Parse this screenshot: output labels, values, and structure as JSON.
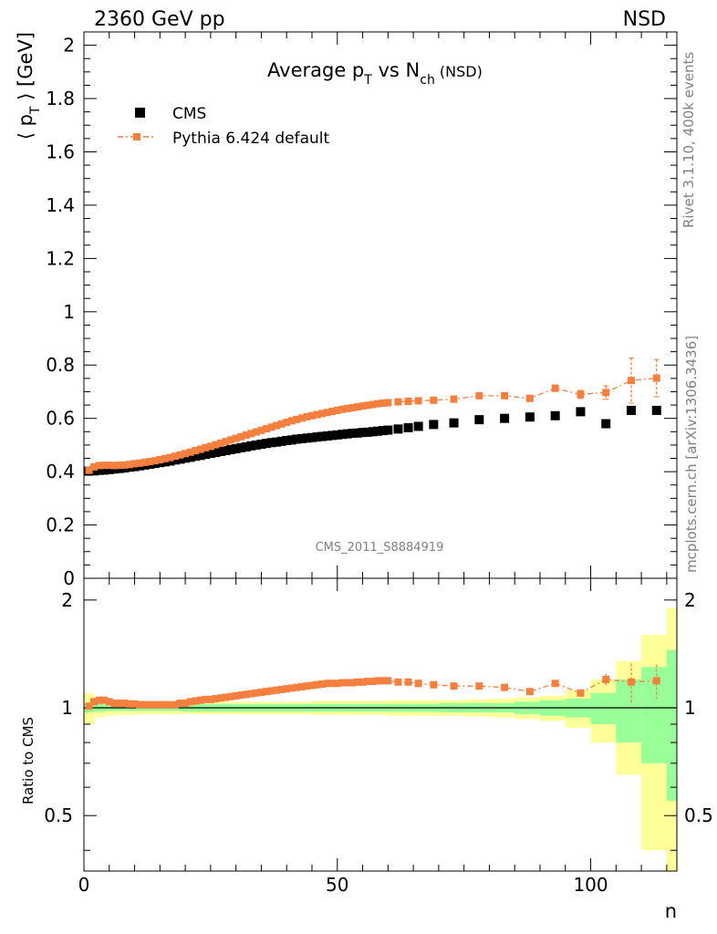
{
  "header": {
    "left": "2360 GeV pp",
    "right": "NSD"
  },
  "side": {
    "rivet": "Rivet 3.1.10,  400k events",
    "mcplots": "mcplots.cern.ch [arXiv:1306.3436]"
  },
  "watermark": "CMS_2011_S8884919",
  "title": {
    "main": "Average p",
    "sub1": "T",
    "mid": " vs N",
    "sub2": "ch",
    "tail": " (NSD)"
  },
  "ylabel": {
    "left": "⟨ p",
    "sub": "T",
    "right": " ⟩ [GeV]"
  },
  "ratio_label": "Ratio to CMS",
  "xlabel": "n",
  "legend": {
    "cms": "CMS",
    "pythia": "Pythia 6.424 default"
  },
  "colors": {
    "cms": "#000000",
    "pythia": "#f47f3f",
    "band_inner": "#99ff99",
    "band_outer": "#ffff99"
  },
  "chart_data": [
    {
      "type": "scatter",
      "title": "Average pT vs Nch (NSD)",
      "xlabel": "n",
      "ylabel": "⟨ pT ⟩ [GeV]",
      "xlim": [
        0,
        117
      ],
      "ylim": [
        0,
        2.05
      ],
      "xticks": [
        0,
        50,
        100
      ],
      "yticks": [
        0,
        0.2,
        0.4,
        0.6,
        0.8,
        1,
        1.2,
        1.4,
        1.6,
        1.8,
        2
      ],
      "series": [
        {
          "name": "CMS",
          "x": [
            1,
            2,
            3,
            4,
            5,
            6,
            7,
            8,
            9,
            10,
            11,
            12,
            13,
            14,
            15,
            16,
            17,
            18,
            19,
            20,
            21,
            22,
            23,
            24,
            25,
            26,
            27,
            28,
            29,
            30,
            31,
            32,
            33,
            34,
            35,
            36,
            37,
            38,
            39,
            40,
            41,
            42,
            43,
            44,
            45,
            46,
            47,
            48,
            49,
            50,
            51,
            52,
            53,
            54,
            55,
            56,
            57,
            58,
            59,
            60,
            62,
            64,
            66,
            69,
            73,
            78,
            83,
            88,
            93,
            98,
            103,
            108,
            113
          ],
          "y": [
            0.402,
            0.403,
            0.405,
            0.406,
            0.408,
            0.41,
            0.412,
            0.414,
            0.417,
            0.419,
            0.422,
            0.425,
            0.428,
            0.431,
            0.434,
            0.437,
            0.44,
            0.444,
            0.447,
            0.451,
            0.454,
            0.458,
            0.461,
            0.465,
            0.469,
            0.472,
            0.476,
            0.479,
            0.483,
            0.486,
            0.49,
            0.493,
            0.497,
            0.5,
            0.503,
            0.506,
            0.509,
            0.511,
            0.514,
            0.517,
            0.519,
            0.522,
            0.524,
            0.526,
            0.528,
            0.53,
            0.532,
            0.534,
            0.536,
            0.538,
            0.54,
            0.542,
            0.544,
            0.545,
            0.547,
            0.548,
            0.55,
            0.552,
            0.554,
            0.556,
            0.56,
            0.565,
            0.57,
            0.577,
            0.583,
            0.595,
            0.6,
            0.605,
            0.61,
            0.625,
            0.58,
            0.63,
            0.63
          ]
        },
        {
          "name": "Pythia 6.424 default",
          "x": [
            1,
            2,
            3,
            4,
            5,
            6,
            7,
            8,
            9,
            10,
            11,
            12,
            13,
            14,
            15,
            16,
            17,
            18,
            19,
            20,
            21,
            22,
            23,
            24,
            25,
            26,
            27,
            28,
            29,
            30,
            31,
            32,
            33,
            34,
            35,
            36,
            37,
            38,
            39,
            40,
            41,
            42,
            43,
            44,
            45,
            46,
            47,
            48,
            49,
            50,
            51,
            52,
            53,
            54,
            55,
            56,
            57,
            58,
            59,
            60,
            62,
            64,
            66,
            69,
            73,
            78,
            83,
            88,
            93,
            98,
            103,
            108,
            113
          ],
          "y": [
            0.405,
            0.418,
            0.423,
            0.424,
            0.424,
            0.423,
            0.424,
            0.425,
            0.427,
            0.43,
            0.432,
            0.435,
            0.438,
            0.441,
            0.445,
            0.449,
            0.453,
            0.458,
            0.463,
            0.468,
            0.473,
            0.479,
            0.484,
            0.49,
            0.495,
            0.501,
            0.507,
            0.513,
            0.519,
            0.525,
            0.531,
            0.537,
            0.543,
            0.549,
            0.555,
            0.561,
            0.567,
            0.573,
            0.579,
            0.585,
            0.591,
            0.596,
            0.601,
            0.606,
            0.61,
            0.614,
            0.618,
            0.622,
            0.626,
            0.63,
            0.634,
            0.637,
            0.64,
            0.643,
            0.646,
            0.649,
            0.652,
            0.655,
            0.657,
            0.659,
            0.662,
            0.664,
            0.666,
            0.668,
            0.672,
            0.685,
            0.685,
            0.675,
            0.713,
            0.69,
            0.697,
            0.742,
            0.751
          ],
          "yerr": [
            0,
            0,
            0,
            0,
            0,
            0,
            0,
            0,
            0,
            0,
            0,
            0,
            0,
            0,
            0,
            0,
            0,
            0,
            0,
            0,
            0,
            0,
            0,
            0,
            0,
            0,
            0,
            0,
            0,
            0,
            0,
            0,
            0,
            0,
            0,
            0,
            0,
            0,
            0,
            0,
            0,
            0,
            0,
            0,
            0,
            0,
            0,
            0,
            0,
            0,
            0,
            0,
            0,
            0,
            0,
            0,
            0,
            0,
            0,
            0,
            0,
            0,
            0,
            0,
            0,
            0,
            0,
            0.01,
            0.012,
            0.015,
            0.025,
            0.085,
            0.07
          ]
        }
      ]
    },
    {
      "type": "scatter",
      "title": "",
      "xlabel": "n",
      "ylabel": "Ratio to CMS",
      "xlim": [
        0,
        117
      ],
      "ylim": [
        0.35,
        2.3
      ],
      "yticks": [
        0.5,
        1,
        2
      ],
      "ref_band_x": [
        0,
        2,
        4,
        6,
        10,
        15,
        20,
        25,
        30,
        35,
        40,
        45,
        50,
        55,
        60,
        65,
        70,
        75,
        80,
        85,
        90,
        95,
        100,
        105,
        110,
        115,
        117
      ],
      "band_inner": [
        0.03,
        0.025,
        0.02,
        0.02,
        0.02,
        0.02,
        0.025,
        0.025,
        0.025,
        0.025,
        0.025,
        0.025,
        0.025,
        0.025,
        0.025,
        0.025,
        0.03,
        0.03,
        0.03,
        0.04,
        0.05,
        0.06,
        0.1,
        0.2,
        0.3,
        0.45,
        0.45
      ],
      "band_outer": [
        0.1,
        0.06,
        0.05,
        0.045,
        0.04,
        0.04,
        0.04,
        0.04,
        0.04,
        0.04,
        0.04,
        0.045,
        0.045,
        0.045,
        0.05,
        0.05,
        0.05,
        0.055,
        0.06,
        0.07,
        0.08,
        0.12,
        0.2,
        0.35,
        0.6,
        0.9,
        0.9
      ],
      "series": [
        {
          "name": "Pythia 6.424 default",
          "x": [
            1,
            2,
            3,
            4,
            5,
            6,
            7,
            8,
            9,
            10,
            11,
            12,
            13,
            14,
            15,
            16,
            17,
            18,
            19,
            20,
            21,
            22,
            23,
            24,
            25,
            26,
            27,
            28,
            29,
            30,
            31,
            32,
            33,
            34,
            35,
            36,
            37,
            38,
            39,
            40,
            41,
            42,
            43,
            44,
            45,
            46,
            47,
            48,
            49,
            50,
            51,
            52,
            53,
            54,
            55,
            56,
            57,
            58,
            59,
            60,
            62,
            64,
            66,
            69,
            73,
            78,
            83,
            88,
            93,
            98,
            103,
            108,
            113
          ],
          "y": [
            1.01,
            1.04,
            1.05,
            1.05,
            1.04,
            1.03,
            1.03,
            1.03,
            1.025,
            1.025,
            1.02,
            1.02,
            1.02,
            1.02,
            1.02,
            1.02,
            1.02,
            1.02,
            1.03,
            1.03,
            1.04,
            1.045,
            1.05,
            1.055,
            1.055,
            1.06,
            1.065,
            1.07,
            1.075,
            1.08,
            1.085,
            1.09,
            1.095,
            1.1,
            1.105,
            1.11,
            1.115,
            1.12,
            1.125,
            1.13,
            1.135,
            1.14,
            1.145,
            1.15,
            1.155,
            1.16,
            1.165,
            1.17,
            1.17,
            1.17,
            1.175,
            1.175,
            1.175,
            1.18,
            1.18,
            1.185,
            1.185,
            1.19,
            1.19,
            1.19,
            1.18,
            1.18,
            1.17,
            1.16,
            1.15,
            1.15,
            1.14,
            1.11,
            1.17,
            1.1,
            1.2,
            1.18,
            1.19
          ],
          "yerr": [
            0,
            0,
            0,
            0,
            0,
            0,
            0,
            0,
            0,
            0,
            0,
            0,
            0,
            0,
            0,
            0,
            0,
            0,
            0,
            0,
            0,
            0,
            0,
            0,
            0,
            0,
            0,
            0,
            0,
            0,
            0,
            0,
            0,
            0,
            0,
            0,
            0,
            0,
            0,
            0,
            0,
            0,
            0,
            0,
            0,
            0,
            0,
            0,
            0,
            0,
            0,
            0,
            0,
            0,
            0,
            0,
            0,
            0,
            0,
            0,
            0,
            0,
            0,
            0,
            0,
            0,
            0,
            0.015,
            0.02,
            0.025,
            0.045,
            0.15,
            0.13
          ]
        }
      ]
    }
  ]
}
